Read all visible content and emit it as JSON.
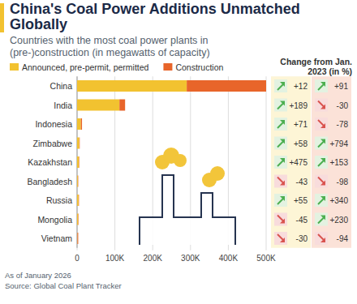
{
  "chart_data": {
    "type": "bar",
    "orientation": "horizontal",
    "stacked": true,
    "grid": true,
    "legend": "top-left",
    "title": "China's Coal Power Additions Unmatched Globally",
    "subtitle": "Countries with the most coal power plants in (pre-)construction (in megawatts of capacity)",
    "categories": [
      "China",
      "India",
      "Indonesia",
      "Zimbabwe",
      "Kazakhstan",
      "Bangladesh",
      "Russia",
      "Mongolia",
      "Vietnam"
    ],
    "series": [
      {
        "name": "Announced, pre-permit, permitted",
        "color": "#f2c230",
        "values": [
          290000,
          112000,
          10000,
          6000,
          5000,
          2000,
          4000,
          3000,
          1000
        ],
        "change": [
          12,
          189,
          71,
          58,
          475,
          -43,
          55,
          -45,
          -30
        ],
        "change_labels": [
          "+12",
          "+189",
          "+71",
          "+58",
          "+475",
          "-43",
          "+55",
          "-45",
          "-30"
        ]
      },
      {
        "name": "Construction",
        "color": "#e8652a",
        "values": [
          210000,
          15000,
          3000,
          1000,
          1000,
          1000,
          1000,
          1000,
          2000
        ],
        "change": [
          91,
          -30,
          -78,
          794,
          153,
          -98,
          340,
          230,
          -94
        ],
        "change_labels": [
          "+91",
          "-30",
          "-78",
          "+794",
          "+153",
          "-98",
          "+340",
          "+230",
          "-94"
        ]
      }
    ],
    "change_title": "Change from Jan. 2023 (in %)",
    "xlim": [
      0,
      500000
    ],
    "xticks": [
      0,
      {
        "value": 100000,
        "label": "100K"
      },
      {
        "value": 200000,
        "label": "200K"
      },
      {
        "value": 300000,
        "label": "300K"
      },
      {
        "value": 400000,
        "label": "400K"
      },
      {
        "value": 500000,
        "label": "500K"
      }
    ],
    "annotations": [
      "As of January 2026",
      "Source: Global Coal Plant Tracker"
    ]
  }
}
